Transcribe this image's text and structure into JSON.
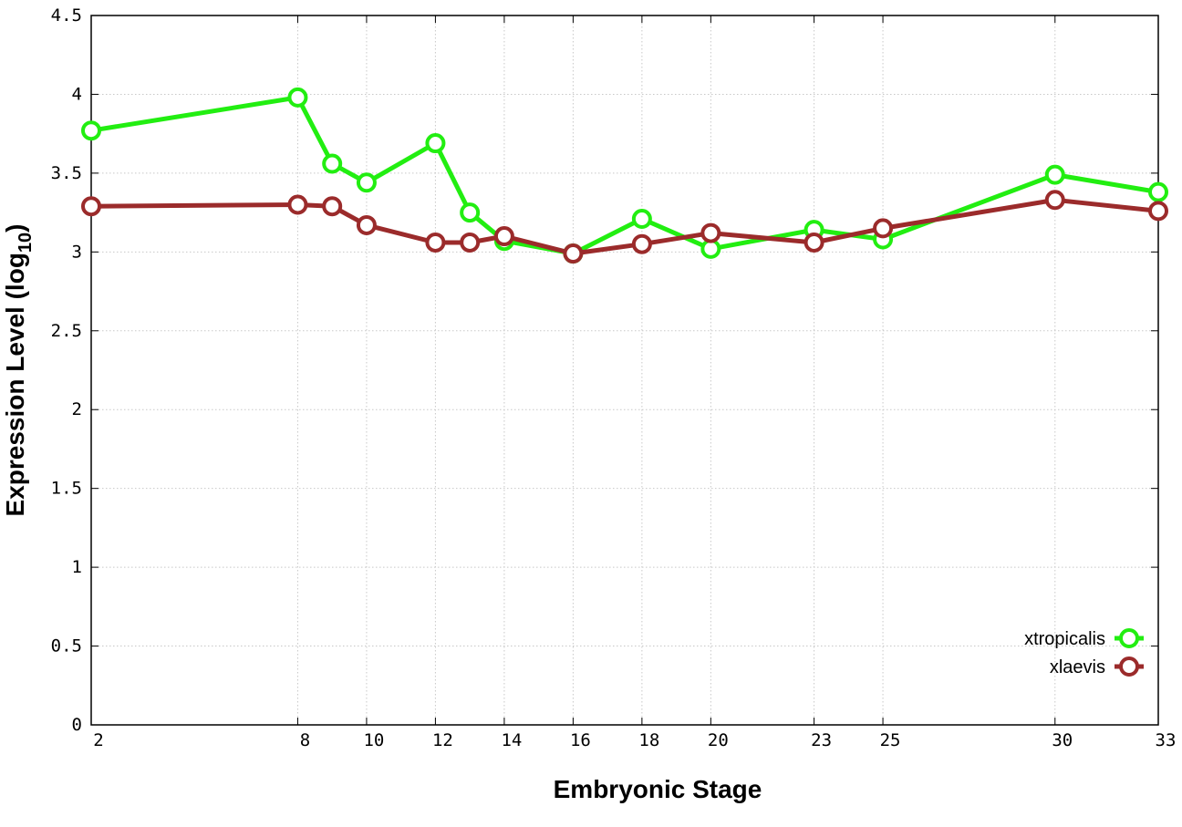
{
  "chart_data": {
    "type": "line",
    "xlabel": "Embryonic Stage",
    "ylabel_main": "Expression Level (log",
    "ylabel_sub": "10",
    "ylabel_close": ")",
    "xlim": [
      2,
      33
    ],
    "ylim": [
      0,
      4.5
    ],
    "x_ticks": [
      2,
      8,
      10,
      12,
      14,
      16,
      18,
      20,
      23,
      25,
      30,
      33
    ],
    "y_ticks": [
      0,
      0.5,
      1,
      1.5,
      2,
      2.5,
      3,
      3.5,
      4,
      4.5
    ],
    "grid": true,
    "legend_position": "bottom-right",
    "series": [
      {
        "name": "xtropicalis",
        "color": "#22ee11",
        "x": [
          2,
          8,
          9,
          10,
          12,
          13,
          14,
          16,
          18,
          20,
          23,
          25,
          30,
          33
        ],
        "y": [
          3.77,
          3.98,
          3.56,
          3.44,
          3.69,
          3.25,
          3.07,
          2.99,
          3.21,
          3.02,
          3.14,
          3.08,
          3.49,
          3.38
        ]
      },
      {
        "name": "xlaevis",
        "color": "#9b2b2b",
        "x": [
          2,
          8,
          9,
          10,
          12,
          13,
          14,
          16,
          18,
          20,
          23,
          25,
          30,
          33
        ],
        "y": [
          3.29,
          3.3,
          3.29,
          3.17,
          3.06,
          3.06,
          3.1,
          2.99,
          3.05,
          3.12,
          3.06,
          3.15,
          3.33,
          3.26
        ]
      }
    ]
  }
}
